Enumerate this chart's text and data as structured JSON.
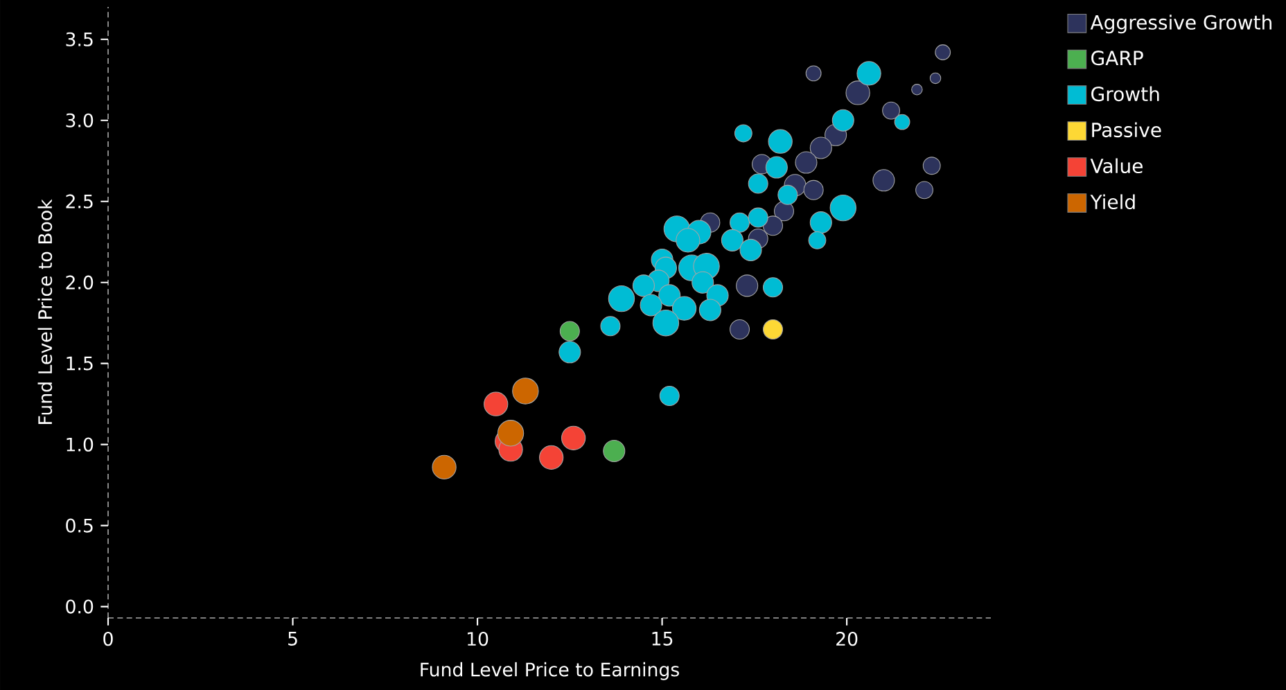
{
  "chart_data": {
    "type": "bubble",
    "xlabel": "Fund Level Price to Earnings",
    "ylabel": "Fund Level Price to Book",
    "xlim": [
      0,
      23.9
    ],
    "ylim": [
      -0.07,
      3.7
    ],
    "xticks": [
      0,
      5,
      10,
      15,
      20
    ],
    "yticks": [
      {
        "value": 0,
        "label": "0.0"
      },
      {
        "value": 0.5,
        "label": "0.5"
      },
      {
        "value": 1,
        "label": "1.0"
      },
      {
        "value": 1.5,
        "label": "1.5"
      },
      {
        "value": 2,
        "label": "2.0"
      },
      {
        "value": 2.5,
        "label": "2.5"
      },
      {
        "value": 3,
        "label": "3.0"
      },
      {
        "value": 3.5,
        "label": "3.5"
      }
    ],
    "legend": "top right",
    "series": [
      {
        "name": "Aggressive Growth",
        "color": "#2d335c",
        "x": [
          19.1,
          22.6,
          22.4,
          21.9,
          20.3,
          21.2,
          19.7,
          19.3,
          17.7,
          18.9,
          22.3,
          21.0,
          22.1,
          18.6,
          19.1,
          18.3,
          16.3,
          18.0,
          17.6,
          17.3,
          17.1
        ],
        "values": [
          3.29,
          3.42,
          3.26,
          3.19,
          3.17,
          3.06,
          2.91,
          2.83,
          2.73,
          2.74,
          2.72,
          2.63,
          2.57,
          2.6,
          2.57,
          2.44,
          2.37,
          2.35,
          2.27,
          1.98,
          1.71
        ],
        "sizes": [
          0.34,
          0.34,
          0.17,
          0.17,
          0.84,
          0.44,
          0.69,
          0.69,
          0.56,
          0.69,
          0.44,
          0.69,
          0.44,
          0.69,
          0.56,
          0.56,
          0.56,
          0.56,
          0.56,
          0.69,
          0.56
        ]
      },
      {
        "name": "GARP",
        "color": "#4caf50",
        "x": [
          12.5,
          13.7
        ],
        "values": [
          1.7,
          0.96
        ],
        "sizes": [
          0.56,
          0.69
        ]
      },
      {
        "name": "Growth",
        "color": "#00bcd4",
        "x": [
          20.6,
          19.9,
          21.5,
          17.2,
          18.2,
          18.1,
          17.6,
          18.4,
          19.9,
          19.3,
          19.2,
          17.1,
          17.6,
          15.4,
          16.0,
          15.7,
          16.9,
          17.4,
          15.0,
          15.1,
          14.9,
          14.5,
          15.2,
          13.9,
          15.8,
          16.2,
          16.1,
          16.5,
          15.6,
          16.3,
          14.7,
          15.1,
          13.6,
          18.0,
          12.5,
          15.2
        ],
        "values": [
          3.29,
          3.0,
          2.99,
          2.92,
          2.87,
          2.71,
          2.61,
          2.54,
          2.46,
          2.37,
          2.26,
          2.37,
          2.4,
          2.33,
          2.31,
          2.26,
          2.26,
          2.2,
          2.14,
          2.09,
          2.01,
          1.98,
          1.92,
          1.9,
          2.09,
          2.1,
          2.0,
          1.92,
          1.84,
          1.83,
          1.86,
          1.75,
          1.73,
          1.97,
          1.57,
          1.3
        ],
        "sizes": [
          0.84,
          0.69,
          0.34,
          0.44,
          0.84,
          0.69,
          0.56,
          0.56,
          1,
          0.69,
          0.44,
          0.56,
          0.56,
          1,
          0.84,
          0.84,
          0.69,
          0.69,
          0.69,
          0.69,
          0.69,
          0.69,
          0.69,
          1,
          1,
          1,
          0.69,
          0.69,
          0.84,
          0.69,
          0.69,
          1,
          0.56,
          0.56,
          0.69,
          0.56
        ]
      },
      {
        "name": "Passive",
        "color": "#fdd835",
        "x": [
          18.0
        ],
        "values": [
          1.71
        ],
        "sizes": [
          0.56
        ]
      },
      {
        "name": "Value",
        "color": "#f44336",
        "x": [
          10.5,
          10.8,
          10.9,
          12.0,
          12.6
        ],
        "values": [
          1.25,
          1.02,
          0.97,
          0.92,
          1.04
        ],
        "sizes": [
          0.84,
          0.84,
          0.84,
          0.84,
          0.84
        ]
      },
      {
        "name": "Yield",
        "color": "#cc6600",
        "x": [
          11.3,
          10.9,
          9.1
        ],
        "values": [
          1.33,
          1.07,
          0.86
        ],
        "sizes": [
          1,
          1,
          0.84
        ]
      }
    ]
  }
}
